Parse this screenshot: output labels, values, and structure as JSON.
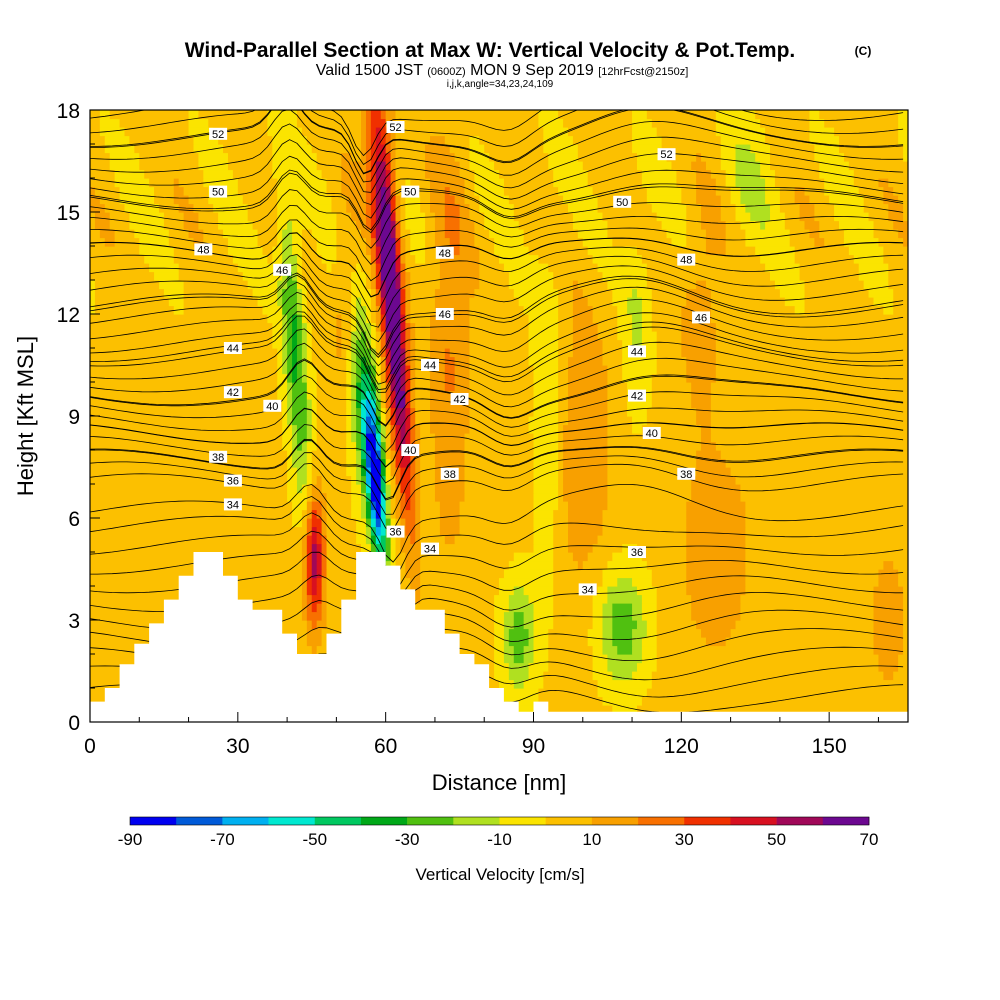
{
  "header": {
    "title": "Wind-Parallel Section at Max W: Vertical Velocity & Pot.Temp.",
    "copyright": "(C)",
    "valid_prefix": "Valid 1500 JST",
    "valid_utc": "(0600Z)",
    "valid_date": "MON 9 Sep 2019",
    "forecast": "[12hrFcst@2150z]",
    "indices": "i,j,k,angle=34,23,24,109"
  },
  "colors": {
    "bins": [
      "#0000f0",
      "#005ad8",
      "#00b0f0",
      "#00e8d0",
      "#00c860",
      "#00a818",
      "#50c010",
      "#b0e020",
      "#fbe400",
      "#fcc000",
      "#f8a000",
      "#f87000",
      "#f03000",
      "#d81020",
      "#a00858",
      "#6c0890"
    ],
    "terrain": "#ffffff",
    "contour": "#000000"
  },
  "chart_data": {
    "type": "heatmap",
    "xlabel": "Distance [nm]",
    "ylabel": "Height [Kft MSL]",
    "xlim": [
      0,
      166
    ],
    "ylim": [
      0,
      18
    ],
    "x_ticks": [
      "0",
      "30",
      "60",
      "90",
      "120",
      "150"
    ],
    "y_ticks": [
      "0",
      "3",
      "6",
      "9",
      "12",
      "15",
      "18"
    ],
    "colorbar": {
      "label": "Vertical Velocity [cm/s]",
      "tick_labels": [
        "-90",
        "-70",
        "-50",
        "-30",
        "-10",
        "10",
        "30",
        "50",
        "70"
      ],
      "levels": [
        -90,
        -80,
        -70,
        -60,
        -50,
        -40,
        -30,
        -20,
        -10,
        0,
        10,
        20,
        30,
        40,
        50,
        60,
        70
      ]
    },
    "potential_temperature": {
      "levels": [
        34,
        36,
        38,
        40,
        42,
        44,
        46,
        48,
        50,
        52
      ],
      "labels": [
        {
          "text": "34",
          "x": 29,
          "y": 6.4
        },
        {
          "text": "36",
          "x": 29,
          "y": 7.1
        },
        {
          "text": "38",
          "x": 26,
          "y": 7.8
        },
        {
          "text": "40",
          "x": 37,
          "y": 9.3
        },
        {
          "text": "42",
          "x": 29,
          "y": 9.7
        },
        {
          "text": "44",
          "x": 29,
          "y": 11.0
        },
        {
          "text": "46",
          "x": 39,
          "y": 13.3
        },
        {
          "text": "48",
          "x": 23,
          "y": 13.9
        },
        {
          "text": "50",
          "x": 26,
          "y": 15.6
        },
        {
          "text": "52",
          "x": 26,
          "y": 17.3
        },
        {
          "text": "52",
          "x": 62,
          "y": 17.5
        },
        {
          "text": "50",
          "x": 65,
          "y": 15.6
        },
        {
          "text": "48",
          "x": 72,
          "y": 13.8
        },
        {
          "text": "46",
          "x": 72,
          "y": 12.0
        },
        {
          "text": "44",
          "x": 69,
          "y": 10.5
        },
        {
          "text": "42",
          "x": 75,
          "y": 9.5
        },
        {
          "text": "40",
          "x": 65,
          "y": 8.0
        },
        {
          "text": "38",
          "x": 73,
          "y": 7.3
        },
        {
          "text": "36",
          "x": 62,
          "y": 5.6
        },
        {
          "text": "34",
          "x": 69,
          "y": 5.1
        },
        {
          "text": "34",
          "x": 101,
          "y": 3.9
        },
        {
          "text": "36",
          "x": 111,
          "y": 5.0
        },
        {
          "text": "38",
          "x": 121,
          "y": 7.3
        },
        {
          "text": "40",
          "x": 114,
          "y": 8.5
        },
        {
          "text": "42",
          "x": 111,
          "y": 9.6
        },
        {
          "text": "44",
          "x": 111,
          "y": 10.9
        },
        {
          "text": "46",
          "x": 124,
          "y": 11.9
        },
        {
          "text": "48",
          "x": 121,
          "y": 13.6
        },
        {
          "text": "50",
          "x": 108,
          "y": 15.3
        },
        {
          "text": "52",
          "x": 117,
          "y": 16.7
        }
      ]
    },
    "terrain_profile": {
      "x": [
        0,
        3,
        3,
        6,
        6,
        9,
        9,
        12,
        12,
        15,
        15,
        18,
        18,
        21,
        21,
        27,
        27,
        30,
        30,
        33,
        33,
        39,
        39,
        42,
        42,
        48,
        48,
        51,
        51,
        54,
        54,
        60,
        60,
        63,
        63,
        66,
        66,
        72,
        72,
        75,
        75,
        78,
        78,
        81,
        81,
        84,
        84,
        87,
        87,
        90,
        90,
        93,
        93,
        166
      ],
      "height": [
        0.6,
        0.6,
        1.0,
        1.0,
        1.7,
        1.7,
        2.3,
        2.3,
        2.9,
        2.9,
        3.6,
        3.6,
        4.3,
        4.3,
        5.0,
        5.0,
        4.3,
        4.3,
        3.6,
        3.6,
        3.3,
        3.3,
        2.6,
        2.6,
        2.0,
        2.0,
        2.6,
        2.6,
        3.6,
        3.6,
        5.0,
        5.0,
        4.6,
        4.6,
        3.9,
        3.9,
        3.3,
        3.3,
        2.6,
        2.6,
        2.0,
        2.0,
        1.7,
        1.7,
        1.0,
        1.0,
        0.6,
        0.6,
        0.3,
        0.3,
        0.6,
        0.6,
        0.3,
        0.3
      ]
    },
    "vertical_velocity_features": [
      {
        "type": "updraft",
        "x": 62,
        "y": 11,
        "peak": 70
      },
      {
        "type": "downdraft",
        "x": 58,
        "y": 7,
        "peak": -90
      },
      {
        "type": "updraft",
        "x": 46,
        "y": 4.5,
        "peak": 50
      },
      {
        "type": "downdraft",
        "x": 42,
        "y": 10,
        "peak": -40
      },
      {
        "type": "downdraft",
        "x": 87,
        "y": 2.5,
        "peak": -30
      },
      {
        "type": "downdraft",
        "x": 108,
        "y": 2.8,
        "peak": -30
      }
    ]
  }
}
